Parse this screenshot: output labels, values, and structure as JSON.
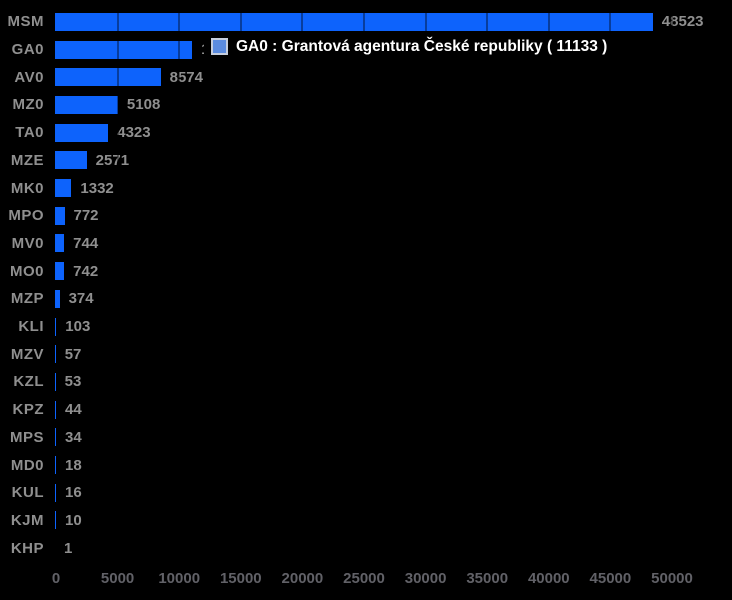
{
  "chart_data": {
    "type": "bar",
    "orientation": "horizontal",
    "title": "",
    "xlabel": "",
    "ylabel": "",
    "categories": [
      "MSM",
      "GA0",
      "AV0",
      "MZ0",
      "TA0",
      "MZE",
      "MK0",
      "MPO",
      "MV0",
      "MO0",
      "MZP",
      "KLI",
      "MZV",
      "KZL",
      "KPZ",
      "MPS",
      "MD0",
      "KUL",
      "KJM",
      "KHP"
    ],
    "values": [
      48523,
      11133,
      8574,
      5108,
      4323,
      2571,
      1332,
      772,
      744,
      742,
      374,
      103,
      57,
      53,
      44,
      34,
      18,
      16,
      10,
      1
    ],
    "xlim": [
      0,
      50000
    ],
    "x_ticks": [
      0,
      5000,
      10000,
      15000,
      20000,
      25000,
      30000,
      35000,
      40000,
      45000,
      50000
    ],
    "grid": "faint vertical gridlines at ticks, visible over bars",
    "legend_position": "tooltip overlay near GA0 bar",
    "colors": {
      "background": "#000000",
      "bar": "#0d63fc",
      "category_label": "#8f8f8f",
      "value_label": "#8f8f8f",
      "axis_label": "#616167"
    }
  },
  "tooltip": {
    "text": "GA0 : Grantová agentura České republiky ( 11133 )",
    "highlighted_category": "GA0",
    "highlighted_value": 11133,
    "swatch_color": "#5b8ce0",
    "swatch_border_color": "#c6cedd",
    "text_color": "#ffffff",
    "background": "#000000"
  }
}
